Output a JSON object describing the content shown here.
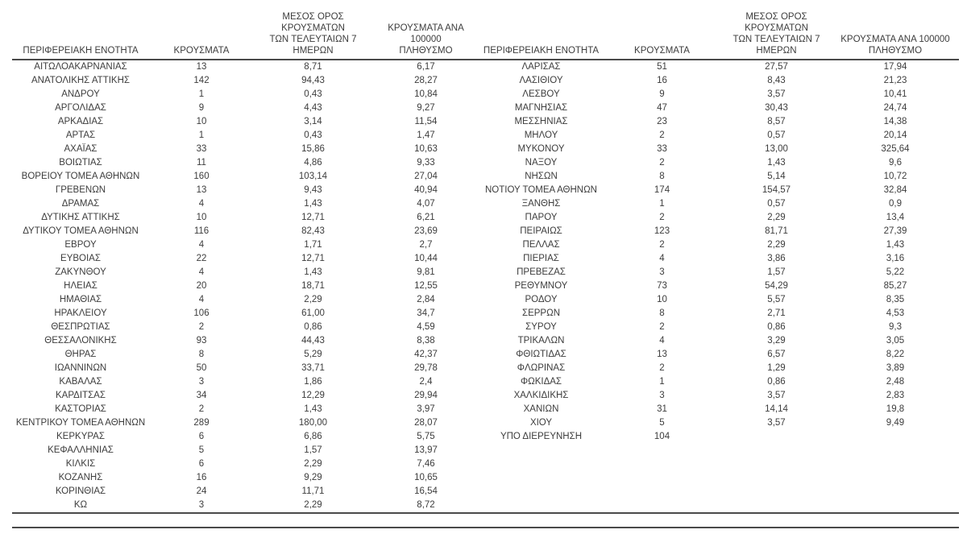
{
  "table": {
    "headers": {
      "region": "ΠΕΡΙΦΕΡΕΙΑΚΗ ΕΝΟΤΗΤΑ",
      "cases": "ΚΡΟΥΣΜΑΤΑ",
      "avg7": "ΜΕΣΟΣ ΟΡΟΣ ΚΡΟΥΣΜΑΤΩΝ\nΤΩΝ ΤΕΛΕΥΤΑΙΩΝ 7\nΗΜΕΡΩΝ",
      "per100k": "ΚΡΟΥΣΜΑΤΑ ΑΝΑ 100000\nΠΛΗΘΥΣΜΟ"
    },
    "text_color": "#3d3d3d",
    "rule_color": "#4a4a4a",
    "left_rows": [
      [
        "ΑΙΤΩΛΟΑΚΑΡΝΑΝΙΑΣ",
        "13",
        "8,71",
        "6,17"
      ],
      [
        "ΑΝΑΤΟΛΙΚΗΣ ΑΤΤΙΚΗΣ",
        "142",
        "94,43",
        "28,27"
      ],
      [
        "ΑΝΔΡΟΥ",
        "1",
        "0,43",
        "10,84"
      ],
      [
        "ΑΡΓΟΛΙΔΑΣ",
        "9",
        "4,43",
        "9,27"
      ],
      [
        "ΑΡΚΑΔΙΑΣ",
        "10",
        "3,14",
        "11,54"
      ],
      [
        "ΑΡΤΑΣ",
        "1",
        "0,43",
        "1,47"
      ],
      [
        "ΑΧΑΪΑΣ",
        "33",
        "15,86",
        "10,63"
      ],
      [
        "ΒΟΙΩΤΙΑΣ",
        "11",
        "4,86",
        "9,33"
      ],
      [
        "ΒΟΡΕΙΟΥ ΤΟΜΕΑ ΑΘΗΝΩΝ",
        "160",
        "103,14",
        "27,04"
      ],
      [
        "ΓΡΕΒΕΝΩΝ",
        "13",
        "9,43",
        "40,94"
      ],
      [
        "ΔΡΑΜΑΣ",
        "4",
        "1,43",
        "4,07"
      ],
      [
        "ΔΥΤΙΚΗΣ ΑΤΤΙΚΗΣ",
        "10",
        "12,71",
        "6,21"
      ],
      [
        "ΔΥΤΙΚΟΥ ΤΟΜΕΑ ΑΘΗΝΩΝ",
        "116",
        "82,43",
        "23,69"
      ],
      [
        "ΕΒΡΟΥ",
        "4",
        "1,71",
        "2,7"
      ],
      [
        "ΕΥΒΟΙΑΣ",
        "22",
        "12,71",
        "10,44"
      ],
      [
        "ΖΑΚΥΝΘΟΥ",
        "4",
        "1,43",
        "9,81"
      ],
      [
        "ΗΛΕΙΑΣ",
        "20",
        "18,71",
        "12,55"
      ],
      [
        "ΗΜΑΘΙΑΣ",
        "4",
        "2,29",
        "2,84"
      ],
      [
        "ΗΡΑΚΛΕΙΟΥ",
        "106",
        "61,00",
        "34,7"
      ],
      [
        "ΘΕΣΠΡΩΤΙΑΣ",
        "2",
        "0,86",
        "4,59"
      ],
      [
        "ΘΕΣΣΑΛΟΝΙΚΗΣ",
        "93",
        "44,43",
        "8,38"
      ],
      [
        "ΘΗΡΑΣ",
        "8",
        "5,29",
        "42,37"
      ],
      [
        "ΙΩΑΝΝΙΝΩΝ",
        "50",
        "33,71",
        "29,78"
      ],
      [
        "ΚΑΒΑΛΑΣ",
        "3",
        "1,86",
        "2,4"
      ],
      [
        "ΚΑΡΔΙΤΣΑΣ",
        "34",
        "12,29",
        "29,94"
      ],
      [
        "ΚΑΣΤΟΡΙΑΣ",
        "2",
        "1,43",
        "3,97"
      ],
      [
        "ΚΕΝΤΡΙΚΟΥ ΤΟΜΕΑ ΑΘΗΝΩΝ",
        "289",
        "180,00",
        "28,07"
      ],
      [
        "ΚΕΡΚΥΡΑΣ",
        "6",
        "6,86",
        "5,75"
      ],
      [
        "ΚΕΦΑΛΛΗΝΙΑΣ",
        "5",
        "1,57",
        "13,97"
      ],
      [
        "ΚΙΛΚΙΣ",
        "6",
        "2,29",
        "7,46"
      ],
      [
        "ΚΟΖΑΝΗΣ",
        "16",
        "9,29",
        "10,65"
      ],
      [
        "ΚΟΡΙΝΘΙΑΣ",
        "24",
        "11,71",
        "16,54"
      ],
      [
        "ΚΩ",
        "3",
        "2,29",
        "8,72"
      ]
    ],
    "right_rows": [
      [
        "ΛΑΡΙΣΑΣ",
        "51",
        "27,57",
        "17,94"
      ],
      [
        "ΛΑΣΙΘΙΟΥ",
        "16",
        "8,43",
        "21,23"
      ],
      [
        "ΛΕΣΒΟΥ",
        "9",
        "3,57",
        "10,41"
      ],
      [
        "ΜΑΓΝΗΣΙΑΣ",
        "47",
        "30,43",
        "24,74"
      ],
      [
        "ΜΕΣΣΗΝΙΑΣ",
        "23",
        "8,57",
        "14,38"
      ],
      [
        "ΜΗΛΟΥ",
        "2",
        "0,57",
        "20,14"
      ],
      [
        "ΜΥΚΟΝΟΥ",
        "33",
        "13,00",
        "325,64"
      ],
      [
        "ΝΑΞΟΥ",
        "2",
        "1,43",
        "9,6"
      ],
      [
        "ΝΗΣΩΝ",
        "8",
        "5,14",
        "10,72"
      ],
      [
        "ΝΟΤΙΟΥ ΤΟΜΕΑ ΑΘΗΝΩΝ",
        "174",
        "154,57",
        "32,84"
      ],
      [
        "ΞΑΝΘΗΣ",
        "1",
        "0,57",
        "0,9"
      ],
      [
        "ΠΑΡΟΥ",
        "2",
        "2,29",
        "13,4"
      ],
      [
        "ΠΕΙΡΑΙΩΣ",
        "123",
        "81,71",
        "27,39"
      ],
      [
        "ΠΕΛΛΑΣ",
        "2",
        "2,29",
        "1,43"
      ],
      [
        "ΠΙΕΡΙΑΣ",
        "4",
        "3,86",
        "3,16"
      ],
      [
        "ΠΡΕΒΕΖΑΣ",
        "3",
        "1,57",
        "5,22"
      ],
      [
        "ΡΕΘΥΜΝΟΥ",
        "73",
        "54,29",
        "85,27"
      ],
      [
        "ΡΟΔΟΥ",
        "10",
        "5,57",
        "8,35"
      ],
      [
        "ΣΕΡΡΩΝ",
        "8",
        "2,71",
        "4,53"
      ],
      [
        "ΣΥΡΟΥ",
        "2",
        "0,86",
        "9,3"
      ],
      [
        "ΤΡΙΚΑΛΩΝ",
        "4",
        "3,29",
        "3,05"
      ],
      [
        "ΦΘΙΩΤΙΔΑΣ",
        "13",
        "6,57",
        "8,22"
      ],
      [
        "ΦΛΩΡΙΝΑΣ",
        "2",
        "1,29",
        "3,89"
      ],
      [
        "ΦΩΚΙΔΑΣ",
        "1",
        "0,86",
        "2,48"
      ],
      [
        "ΧΑΛΚΙΔΙΚΗΣ",
        "3",
        "3,57",
        "2,83"
      ],
      [
        "ΧΑΝΙΩΝ",
        "31",
        "14,14",
        "19,8"
      ],
      [
        "ΧΙΟΥ",
        "5",
        "3,57",
        "9,49"
      ],
      [
        "ΥΠΟ ΔΙΕΡΕΥΝΗΣΗ",
        "104",
        "",
        ""
      ]
    ]
  }
}
